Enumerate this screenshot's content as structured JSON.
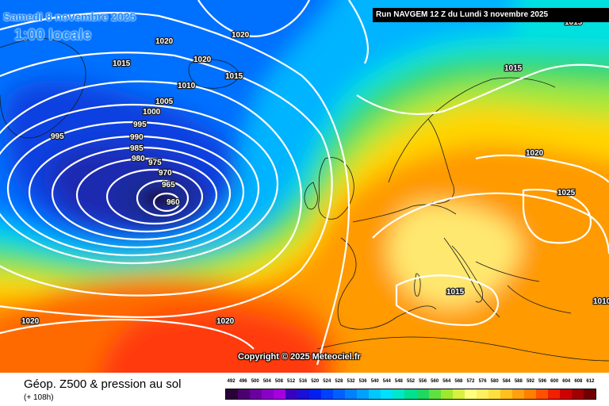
{
  "header": {
    "date_line": "Samedi 8 novembre 2025",
    "time_line": "1:00 locale",
    "run_info": "Run NAVGEM 12 Z du Lundi 3 novembre 2025"
  },
  "copyright": "Copyright © 2025 Meteociel.fr",
  "footer": {
    "title": "Géop. Z500 & pression au sol",
    "subtitle": "(+ 108h)"
  },
  "isobar_labels": [
    "1020",
    "1020",
    "1015",
    "1020",
    "1015",
    "1010",
    "1005",
    "1000",
    "995",
    "990",
    "985",
    "980",
    "975",
    "970",
    "965",
    "960",
    "995",
    "1015",
    "1020",
    "1025",
    "1015",
    "1020",
    "1020",
    "1015",
    "1010"
  ],
  "legend": {
    "values": [
      "492",
      "496",
      "500",
      "504",
      "508",
      "512",
      "516",
      "520",
      "524",
      "528",
      "532",
      "536",
      "540",
      "544",
      "548",
      "552",
      "556",
      "560",
      "564",
      "568",
      "572",
      "576",
      "580",
      "584",
      "588",
      "592",
      "596",
      "600",
      "604",
      "608",
      "612"
    ],
    "colors": [
      "#2a0038",
      "#4b0070",
      "#6a00a0",
      "#8a00c8",
      "#a400e0",
      "#3a00c0",
      "#1a10d8",
      "#0020f0",
      "#0040ff",
      "#0060ff",
      "#0080ff",
      "#00a0ff",
      "#00c8ff",
      "#00e0ff",
      "#00e8c8",
      "#00e090",
      "#20d860",
      "#60e040",
      "#a0e830",
      "#d8f040",
      "#ffff80",
      "#fff060",
      "#ffe040",
      "#ffc020",
      "#ffa010",
      "#ff8000",
      "#ff5000",
      "#f02000",
      "#d00000",
      "#a00000",
      "#700000"
    ]
  }
}
